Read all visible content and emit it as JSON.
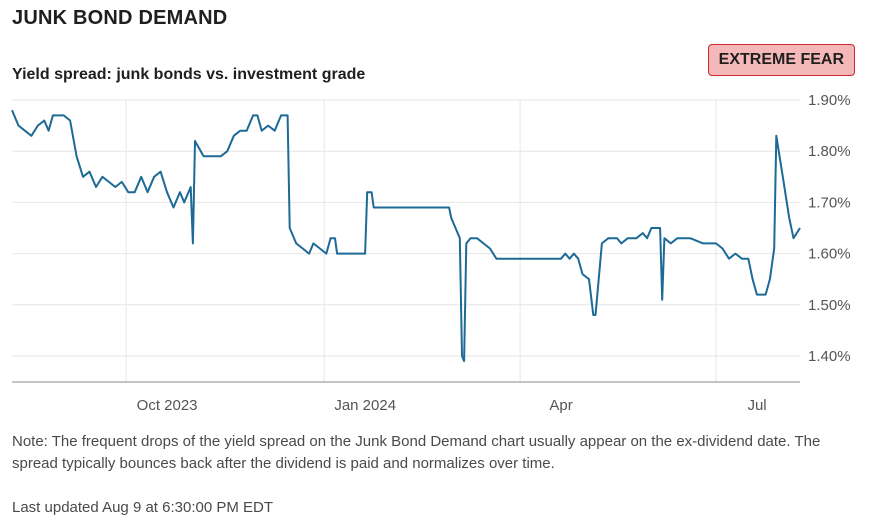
{
  "header": {
    "title": "JUNK BOND DEMAND",
    "subtitle": "Yield spread: junk bonds vs. investment grade",
    "badge": "EXTREME FEAR"
  },
  "footer": {
    "note": "Note: The frequent drops of the yield spread on the Junk Bond Demand chart usually appear on the ex-dividend date. The spread typically bounces back after the dividend is paid and normalizes over time.",
    "last_updated": "Last updated Aug 9 at 6:30:00 PM EDT"
  },
  "colors": {
    "line": "#1d6a96",
    "grid": "#e6e6e6",
    "axis": "#888888",
    "badge_bg": "#f5b8b8",
    "badge_border": "#c92a2a"
  },
  "chart_data": {
    "type": "line",
    "title": "Yield spread: junk bonds vs. investment grade",
    "xlabel": "",
    "ylabel": "",
    "x_range": [
      "2023-08-09",
      "2024-08-09"
    ],
    "ylim": [
      1.35,
      1.9
    ],
    "y_ticks": [
      1.4,
      1.5,
      1.6,
      1.7,
      1.8,
      1.9
    ],
    "y_tick_labels": [
      "1.40%",
      "1.50%",
      "1.60%",
      "1.70%",
      "1.80%",
      "1.90%"
    ],
    "x_ticks": [
      "2023-10-01",
      "2024-01-01",
      "2024-04-01",
      "2024-07-01"
    ],
    "x_tick_labels": [
      "Oct 2023",
      "Jan 2024",
      "Apr",
      "Jul"
    ],
    "grid": true,
    "y_axis_position": "right",
    "series": [
      {
        "points": [
          [
            "2023-08-09",
            1.88
          ],
          [
            "2023-08-12",
            1.85
          ],
          [
            "2023-08-15",
            1.84
          ],
          [
            "2023-08-18",
            1.83
          ],
          [
            "2023-08-21",
            1.85
          ],
          [
            "2023-08-24",
            1.86
          ],
          [
            "2023-08-26",
            1.84
          ],
          [
            "2023-08-28",
            1.87
          ],
          [
            "2023-09-02",
            1.87
          ],
          [
            "2023-09-05",
            1.86
          ],
          [
            "2023-09-08",
            1.79
          ],
          [
            "2023-09-11",
            1.75
          ],
          [
            "2023-09-14",
            1.76
          ],
          [
            "2023-09-17",
            1.73
          ],
          [
            "2023-09-20",
            1.75
          ],
          [
            "2023-09-23",
            1.74
          ],
          [
            "2023-09-26",
            1.73
          ],
          [
            "2023-09-29",
            1.74
          ],
          [
            "2023-10-02",
            1.72
          ],
          [
            "2023-10-05",
            1.72
          ],
          [
            "2023-10-08",
            1.75
          ],
          [
            "2023-10-11",
            1.72
          ],
          [
            "2023-10-14",
            1.75
          ],
          [
            "2023-10-17",
            1.76
          ],
          [
            "2023-10-20",
            1.72
          ],
          [
            "2023-10-23",
            1.69
          ],
          [
            "2023-10-26",
            1.72
          ],
          [
            "2023-10-28",
            1.7
          ],
          [
            "2023-10-31",
            1.73
          ],
          [
            "2023-11-01",
            1.62
          ],
          [
            "2023-11-02",
            1.82
          ],
          [
            "2023-11-06",
            1.79
          ],
          [
            "2023-11-10",
            1.79
          ],
          [
            "2023-11-14",
            1.79
          ],
          [
            "2023-11-17",
            1.8
          ],
          [
            "2023-11-20",
            1.83
          ],
          [
            "2023-11-23",
            1.84
          ],
          [
            "2023-11-26",
            1.84
          ],
          [
            "2023-11-29",
            1.87
          ],
          [
            "2023-12-01",
            1.87
          ],
          [
            "2023-12-03",
            1.84
          ],
          [
            "2023-12-06",
            1.85
          ],
          [
            "2023-12-09",
            1.84
          ],
          [
            "2023-12-12",
            1.87
          ],
          [
            "2023-12-15",
            1.87
          ],
          [
            "2023-12-16",
            1.65
          ],
          [
            "2023-12-19",
            1.62
          ],
          [
            "2023-12-22",
            1.61
          ],
          [
            "2023-12-25",
            1.6
          ],
          [
            "2023-12-27",
            1.62
          ],
          [
            "2023-12-30",
            1.61
          ],
          [
            "2024-01-02",
            1.6
          ],
          [
            "2024-01-04",
            1.63
          ],
          [
            "2024-01-06",
            1.63
          ],
          [
            "2024-01-07",
            1.6
          ],
          [
            "2024-01-10",
            1.6
          ],
          [
            "2024-01-16",
            1.6
          ],
          [
            "2024-01-20",
            1.6
          ],
          [
            "2024-01-21",
            1.72
          ],
          [
            "2024-01-23",
            1.72
          ],
          [
            "2024-01-24",
            1.69
          ],
          [
            "2024-02-05",
            1.69
          ],
          [
            "2024-02-20",
            1.69
          ],
          [
            "2024-02-28",
            1.69
          ],
          [
            "2024-02-29",
            1.67
          ],
          [
            "2024-03-02",
            1.65
          ],
          [
            "2024-03-04",
            1.63
          ],
          [
            "2024-03-05",
            1.4
          ],
          [
            "2024-03-06",
            1.39
          ],
          [
            "2024-03-07",
            1.62
          ],
          [
            "2024-03-09",
            1.63
          ],
          [
            "2024-03-12",
            1.63
          ],
          [
            "2024-03-15",
            1.62
          ],
          [
            "2024-03-18",
            1.61
          ],
          [
            "2024-03-21",
            1.59
          ],
          [
            "2024-03-26",
            1.59
          ],
          [
            "2024-04-05",
            1.59
          ],
          [
            "2024-04-15",
            1.59
          ],
          [
            "2024-04-20",
            1.59
          ],
          [
            "2024-04-22",
            1.6
          ],
          [
            "2024-04-24",
            1.59
          ],
          [
            "2024-04-26",
            1.6
          ],
          [
            "2024-04-28",
            1.59
          ],
          [
            "2024-04-30",
            1.56
          ],
          [
            "2024-05-03",
            1.55
          ],
          [
            "2024-05-05",
            1.48
          ],
          [
            "2024-05-06",
            1.48
          ],
          [
            "2024-05-09",
            1.62
          ],
          [
            "2024-05-12",
            1.63
          ],
          [
            "2024-05-16",
            1.63
          ],
          [
            "2024-05-18",
            1.62
          ],
          [
            "2024-05-21",
            1.63
          ],
          [
            "2024-05-25",
            1.63
          ],
          [
            "2024-05-28",
            1.64
          ],
          [
            "2024-05-30",
            1.63
          ],
          [
            "2024-06-01",
            1.65
          ],
          [
            "2024-06-05",
            1.65
          ],
          [
            "2024-06-06",
            1.51
          ],
          [
            "2024-06-07",
            1.63
          ],
          [
            "2024-06-10",
            1.62
          ],
          [
            "2024-06-13",
            1.63
          ],
          [
            "2024-06-16",
            1.63
          ],
          [
            "2024-06-19",
            1.63
          ],
          [
            "2024-06-25",
            1.62
          ],
          [
            "2024-07-01",
            1.62
          ],
          [
            "2024-07-04",
            1.61
          ],
          [
            "2024-07-07",
            1.59
          ],
          [
            "2024-07-10",
            1.6
          ],
          [
            "2024-07-13",
            1.59
          ],
          [
            "2024-07-16",
            1.59
          ],
          [
            "2024-07-18",
            1.55
          ],
          [
            "2024-07-20",
            1.52
          ],
          [
            "2024-07-24",
            1.52
          ],
          [
            "2024-07-26",
            1.55
          ],
          [
            "2024-07-28",
            1.61
          ],
          [
            "2024-07-29",
            1.83
          ],
          [
            "2024-08-01",
            1.75
          ],
          [
            "2024-08-04",
            1.67
          ],
          [
            "2024-08-06",
            1.63
          ],
          [
            "2024-08-09",
            1.65
          ]
        ]
      }
    ]
  }
}
